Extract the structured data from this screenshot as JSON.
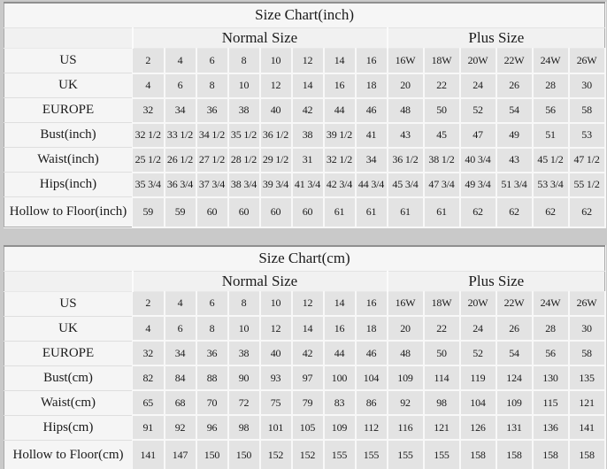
{
  "page": {
    "background_color": "#c9c9c9",
    "text_color": "#1b1b1b",
    "data_cell_color": "#e3e3e3",
    "label_cell_color": "#f5f5f5",
    "grid_line_color": "#f8f8f8",
    "outer_border_color": "#aaaaaa"
  },
  "chart_data": [
    {
      "type": "table",
      "title": "Size Chart(inch)",
      "column_groups": [
        {
          "label": "",
          "span": 1
        },
        {
          "label": "Normal Size",
          "span": 8
        },
        {
          "label": "Plus Size",
          "span": 6
        }
      ],
      "rows": [
        {
          "label": "US",
          "values": [
            "2",
            "4",
            "6",
            "8",
            "10",
            "12",
            "14",
            "16",
            "16W",
            "18W",
            "20W",
            "22W",
            "24W",
            "26W"
          ]
        },
        {
          "label": "UK",
          "values": [
            "4",
            "6",
            "8",
            "10",
            "12",
            "14",
            "16",
            "18",
            "20",
            "22",
            "24",
            "26",
            "28",
            "30"
          ]
        },
        {
          "label": "EUROPE",
          "values": [
            "32",
            "34",
            "36",
            "38",
            "40",
            "42",
            "44",
            "46",
            "48",
            "50",
            "52",
            "54",
            "56",
            "58"
          ]
        },
        {
          "label": "Bust(inch)",
          "values": [
            "32 1/2",
            "33 1/2",
            "34 1/2",
            "35 1/2",
            "36 1/2",
            "38",
            "39 1/2",
            "41",
            "43",
            "45",
            "47",
            "49",
            "51",
            "53"
          ]
        },
        {
          "label": "Waist(inch)",
          "values": [
            "25 1/2",
            "26 1/2",
            "27 1/2",
            "28 1/2",
            "29 1/2",
            "31",
            "32 1/2",
            "34",
            "36 1/2",
            "38 1/2",
            "40 3/4",
            "43",
            "45 1/2",
            "47 1/2"
          ]
        },
        {
          "label": "Hips(inch)",
          "values": [
            "35 3/4",
            "36 3/4",
            "37 3/4",
            "38 3/4",
            "39 3/4",
            "41 3/4",
            "42 3/4",
            "44 3/4",
            "45 3/4",
            "47 3/4",
            "49 3/4",
            "51 3/4",
            "53 3/4",
            "55 1/2"
          ]
        },
        {
          "label": "Hollow to Floor(inch)",
          "values": [
            "59",
            "59",
            "60",
            "60",
            "60",
            "60",
            "61",
            "61",
            "61",
            "61",
            "62",
            "62",
            "62",
            "62"
          ]
        }
      ]
    },
    {
      "type": "table",
      "title": "Size Chart(cm)",
      "column_groups": [
        {
          "label": "",
          "span": 1
        },
        {
          "label": "Normal Size",
          "span": 8
        },
        {
          "label": "Plus Size",
          "span": 6
        }
      ],
      "rows": [
        {
          "label": "US",
          "values": [
            "2",
            "4",
            "6",
            "8",
            "10",
            "12",
            "14",
            "16",
            "16W",
            "18W",
            "20W",
            "22W",
            "24W",
            "26W"
          ]
        },
        {
          "label": "UK",
          "values": [
            "4",
            "6",
            "8",
            "10",
            "12",
            "14",
            "16",
            "18",
            "20",
            "22",
            "24",
            "26",
            "28",
            "30"
          ]
        },
        {
          "label": "EUROPE",
          "values": [
            "32",
            "34",
            "36",
            "38",
            "40",
            "42",
            "44",
            "46",
            "48",
            "50",
            "52",
            "54",
            "56",
            "58"
          ]
        },
        {
          "label": "Bust(cm)",
          "values": [
            "82",
            "84",
            "88",
            "90",
            "93",
            "97",
            "100",
            "104",
            "109",
            "114",
            "119",
            "124",
            "130",
            "135"
          ]
        },
        {
          "label": "Waist(cm)",
          "values": [
            "65",
            "68",
            "70",
            "72",
            "75",
            "79",
            "83",
            "86",
            "92",
            "98",
            "104",
            "109",
            "115",
            "121"
          ]
        },
        {
          "label": "Hips(cm)",
          "values": [
            "91",
            "92",
            "96",
            "98",
            "101",
            "105",
            "109",
            "112",
            "116",
            "121",
            "126",
            "131",
            "136",
            "141"
          ]
        },
        {
          "label": "Hollow to Floor(cm)",
          "values": [
            "141",
            "147",
            "150",
            "150",
            "152",
            "152",
            "155",
            "155",
            "155",
            "155",
            "158",
            "158",
            "158",
            "158"
          ]
        }
      ]
    }
  ],
  "layout": {
    "label_col_width": 145,
    "normal_col_width": 36,
    "plus_col_width": 41,
    "total_columns": 15
  }
}
